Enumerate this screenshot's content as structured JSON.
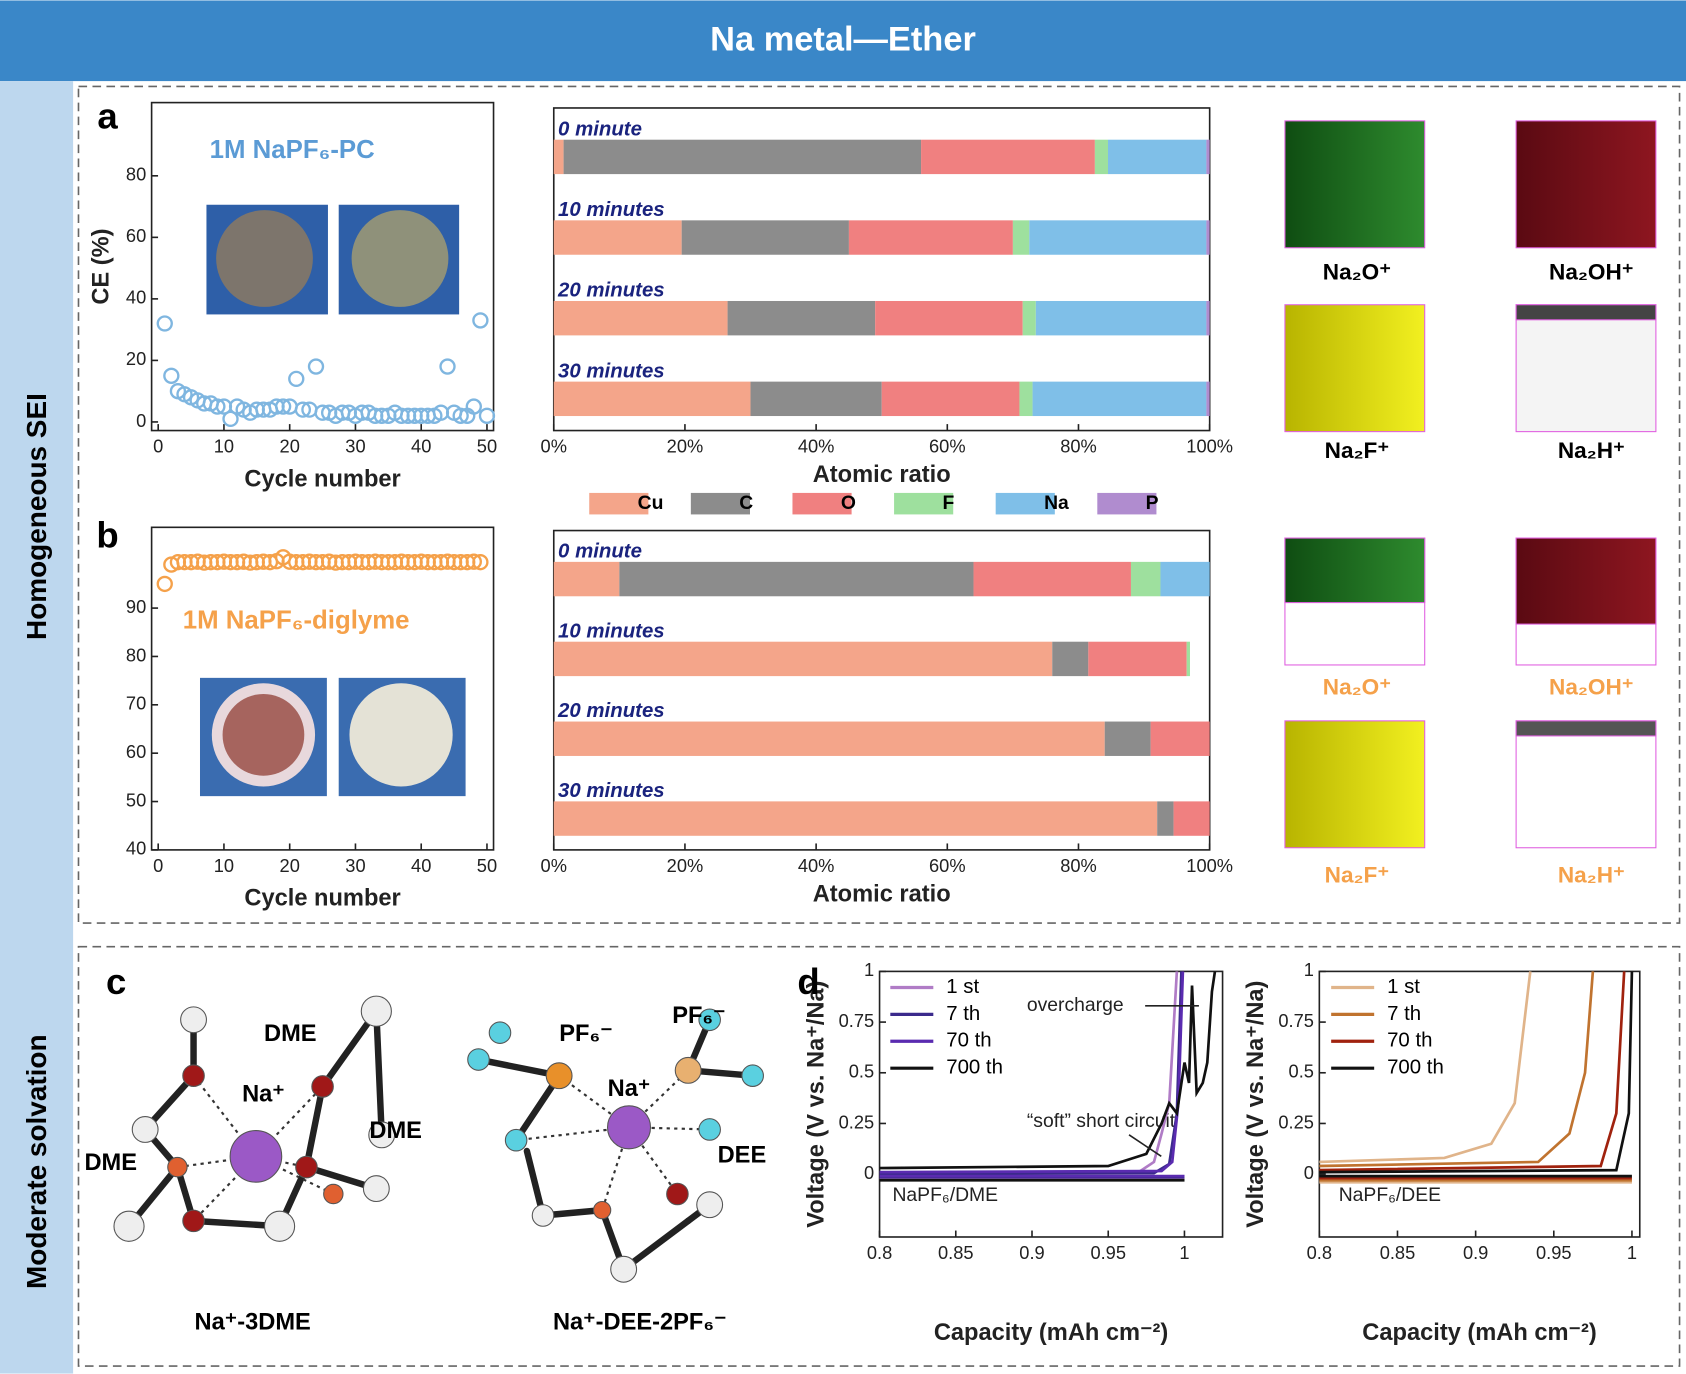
{
  "header": {
    "title": "Na metal—Ether"
  },
  "side_labels": [
    "Homogeneous SEI",
    "Moderate solvation"
  ],
  "cubes_a": [
    "Na₂O⁺",
    "Na₂OH⁺",
    "Na₂F⁺",
    "Na₂H⁺"
  ],
  "cubes_b": [
    "Na₂O⁺",
    "Na₂OH⁺",
    "Na₂F⁺",
    "Na₂H⁺"
  ],
  "molecules": {
    "panel_label": "c",
    "labels": [
      "DME",
      "Na⁺",
      "DME",
      "DME",
      "Na⁺-3DME",
      "PF₆⁻",
      "PF₆⁻",
      "Na⁺",
      "DEE",
      "Na⁺-DEE-2PF₆⁻"
    ]
  },
  "chart_data": [
    {
      "type": "scatter",
      "panel_label": "a",
      "annotation": "1M NaPF₆-PC",
      "color": "#7fb6e0",
      "xlabel": "Cycle number",
      "ylabel": "CE (%)",
      "x": [
        1,
        2,
        3,
        4,
        5,
        6,
        7,
        8,
        9,
        10,
        11,
        12,
        13,
        14,
        15,
        16,
        17,
        18,
        19,
        20,
        21,
        22,
        23,
        24,
        25,
        26,
        27,
        28,
        29,
        30,
        31,
        32,
        33,
        34,
        35,
        36,
        37,
        38,
        39,
        40,
        41,
        42,
        43,
        44,
        45,
        46,
        47,
        48,
        49,
        50
      ],
      "values": [
        32,
        15,
        10,
        9,
        8,
        7,
        6,
        6,
        5,
        5,
        1,
        5,
        4,
        3,
        4,
        4,
        4,
        5,
        5,
        5,
        14,
        4,
        4,
        18,
        3,
        3,
        2,
        3,
        3,
        2,
        3,
        3,
        2,
        2,
        2,
        3,
        2,
        2,
        2,
        2,
        2,
        2,
        3,
        18,
        3,
        2,
        2,
        5,
        33,
        2
      ],
      "xlim": [
        -1,
        51
      ],
      "ylim": [
        -2.8,
        103.8
      ],
      "xticks": [
        0,
        10,
        20,
        30,
        40,
        50
      ],
      "yticks": [
        0,
        20,
        40,
        60,
        80
      ]
    },
    {
      "type": "bar",
      "orientation": "horizontal",
      "stacked": true,
      "legend": true,
      "xlabel": "Atomic ratio",
      "categories": [
        "0 minute",
        "10 minutes",
        "20 minutes",
        "30 minutes"
      ],
      "series": [
        {
          "name": "Cu",
          "color": "#f4a58a",
          "values": [
            1.5,
            19.5,
            26.5,
            30
          ]
        },
        {
          "name": "C",
          "color": "#8c8c8c",
          "values": [
            54.5,
            25.5,
            22.5,
            20
          ]
        },
        {
          "name": "O",
          "color": "#f08080",
          "values": [
            26.5,
            25,
            22.5,
            21
          ]
        },
        {
          "name": "F",
          "color": "#9ee09e",
          "values": [
            2,
            2.5,
            2,
            2
          ]
        },
        {
          "name": "Na",
          "color": "#7fbfe8",
          "values": [
            15,
            27,
            26,
            26.5
          ]
        },
        {
          "name": "P",
          "color": "#b08ccf",
          "values": [
            0.5,
            0.5,
            0.5,
            0.5
          ]
        }
      ],
      "xlim": [
        0,
        100
      ],
      "xticks": [
        {
          "value": 0,
          "label": "0%"
        },
        {
          "value": 20,
          "label": "20%"
        },
        {
          "value": 40,
          "label": "40%"
        },
        {
          "value": 60,
          "label": "60%"
        },
        {
          "value": 80,
          "label": "80%"
        },
        {
          "value": 100,
          "label": "100%"
        }
      ]
    },
    {
      "type": "scatter",
      "panel_label": "b",
      "annotation": "1M NaPF₆-diglyme",
      "color": "#f5a14a",
      "xlabel": "Cycle number",
      "x": [
        1,
        2,
        3,
        4,
        5,
        6,
        7,
        8,
        9,
        10,
        11,
        12,
        13,
        14,
        15,
        16,
        17,
        18,
        19,
        20,
        21,
        22,
        23,
        24,
        25,
        26,
        27,
        28,
        29,
        30,
        31,
        32,
        33,
        34,
        35,
        36,
        37,
        38,
        39,
        40,
        41,
        42,
        43,
        44,
        45,
        46,
        47,
        48,
        49
      ],
      "values": [
        95,
        99,
        99.5,
        99.5,
        99.5,
        99.6,
        99.4,
        99.5,
        99.5,
        99.6,
        99.5,
        99.5,
        99.6,
        99.4,
        99.5,
        99.6,
        99.5,
        99.7,
        100.5,
        99.6,
        99.5,
        99.5,
        99.6,
        99.5,
        99.5,
        99.6,
        99.4,
        99.5,
        99.5,
        99.6,
        99.5,
        99.5,
        99.6,
        99.5,
        99.5,
        99.5,
        99.6,
        99.5,
        99.5,
        99.6,
        99.5,
        99.5,
        99.5,
        99.6,
        99.5,
        99.5,
        99.5,
        99.6,
        99.5
      ],
      "xlim": [
        -1,
        51
      ],
      "ylim": [
        40,
        106.7
      ],
      "xticks": [
        0,
        10,
        20,
        30,
        40,
        50
      ],
      "yticks": [
        40,
        50,
        60,
        70,
        80,
        90
      ]
    },
    {
      "type": "bar",
      "orientation": "horizontal",
      "stacked": true,
      "legend": false,
      "xlabel": "Atomic ratio",
      "categories": [
        "0 minute",
        "10 minutes",
        "20 minutes",
        "30 minutes"
      ],
      "series": [
        {
          "color": "#f4a58a",
          "values": [
            10,
            76,
            84,
            92
          ]
        },
        {
          "color": "#8c8c8c",
          "values": [
            54,
            5.5,
            7,
            2.5
          ]
        },
        {
          "color": "#f08080",
          "values": [
            24,
            15,
            9,
            5.5
          ]
        },
        {
          "color": "#9ee09e",
          "values": [
            4.5,
            0.5,
            0,
            0
          ]
        },
        {
          "color": "#7fbfe8",
          "values": [
            7.5,
            0,
            0,
            0
          ]
        }
      ],
      "xlim": [
        0,
        100
      ],
      "xticks": [
        {
          "value": 0,
          "label": "0%"
        },
        {
          "value": 20,
          "label": "20%"
        },
        {
          "value": 40,
          "label": "40%"
        },
        {
          "value": 60,
          "label": "60%"
        },
        {
          "value": 80,
          "label": "80%"
        },
        {
          "value": 100,
          "label": "100%"
        }
      ]
    },
    {
      "type": "line",
      "panel_label": "d",
      "xlabel": "Capacity (mAh cm⁻²)",
      "ylabel": "Voltage (V vs. Na⁺/Na)",
      "annotations": [
        "overcharge",
        "“soft” short circuit",
        "NaPF₆/DME"
      ],
      "series": [
        {
          "name": "1 st",
          "color": "#b07cc6",
          "x": [
            0.8,
            0.97,
            0.98,
            0.985,
            0.99,
            0.995,
            null,
            0.8,
            1.0
          ],
          "values": [
            0.0,
            0.01,
            0.06,
            0.2,
            0.35,
            1,
            null,
            -0.02,
            -0.02
          ]
        },
        {
          "name": "7 th",
          "color": "#3b2a8c",
          "x": [
            0.8,
            0.98,
            0.99,
            0.995,
            0.998,
            null,
            0.8,
            1.0
          ],
          "values": [
            0.0,
            0.005,
            0.05,
            0.3,
            1,
            null,
            -0.015,
            -0.015
          ]
        },
        {
          "name": "70 th",
          "color": "#5a2bb0",
          "x": [
            0.8,
            0.985,
            0.992,
            0.996,
            0.999,
            null,
            0.8,
            1.0
          ],
          "values": [
            0.01,
            0.015,
            0.06,
            0.35,
            1,
            null,
            -0.01,
            -0.01
          ]
        },
        {
          "name": "700 th",
          "color": "#111111",
          "x": [
            0.8,
            0.95,
            0.975,
            0.985,
            0.99,
            0.995,
            1.0,
            1.003,
            1.005,
            1.008,
            1.012,
            1.015,
            1.018,
            1.02,
            null,
            0.8,
            1.0
          ],
          "values": [
            0.03,
            0.04,
            0.1,
            0.25,
            0.35,
            0.3,
            0.55,
            0.45,
            0.93,
            0.4,
            0.45,
            0.55,
            0.9,
            1,
            null,
            -0.03,
            -0.03
          ]
        }
      ],
      "xlim": [
        0.8,
        1.025
      ],
      "ylim": [
        -0.31,
        1
      ],
      "xticks": [
        0.8,
        0.85,
        0.9,
        0.95,
        1
      ],
      "yticks": [
        0,
        0.25,
        0.5,
        0.75,
        1
      ]
    },
    {
      "type": "line",
      "xlabel": "Capacity (mAh cm⁻²)",
      "ylabel": "Voltage (V vs. Na⁺/Na)",
      "annotations": [
        "NaPF₆/DEE"
      ],
      "series": [
        {
          "name": "1 st",
          "color": "#e0b48a",
          "x": [
            0.8,
            0.88,
            0.91,
            0.925,
            0.935,
            null,
            0.8,
            1.0
          ],
          "values": [
            0.06,
            0.08,
            0.15,
            0.35,
            1,
            null,
            -0.04,
            -0.04
          ]
        },
        {
          "name": "7 th",
          "color": "#c0732f",
          "x": [
            0.8,
            0.94,
            0.96,
            0.97,
            0.975,
            null,
            0.8,
            1.0
          ],
          "values": [
            0.04,
            0.06,
            0.2,
            0.5,
            1,
            null,
            -0.03,
            -0.03
          ]
        },
        {
          "name": "70 th",
          "color": "#a0220e",
          "x": [
            0.8,
            0.98,
            0.99,
            0.995,
            null,
            0.8,
            1.0
          ],
          "values": [
            0.02,
            0.04,
            0.3,
            1,
            null,
            -0.02,
            -0.02
          ]
        },
        {
          "name": "700 th",
          "color": "#111111",
          "x": [
            0.8,
            0.99,
            0.998,
            1.0,
            null,
            0.8,
            1.0
          ],
          "values": [
            0.01,
            0.02,
            0.3,
            1,
            null,
            -0.01,
            -0.01
          ]
        }
      ],
      "xlim": [
        0.8,
        1.005
      ],
      "ylim": [
        -0.31,
        1
      ],
      "xticks": [
        0.8,
        0.85,
        0.9,
        0.95,
        1
      ],
      "yticks": [
        0,
        0.25,
        0.5,
        0.75,
        1
      ]
    }
  ]
}
